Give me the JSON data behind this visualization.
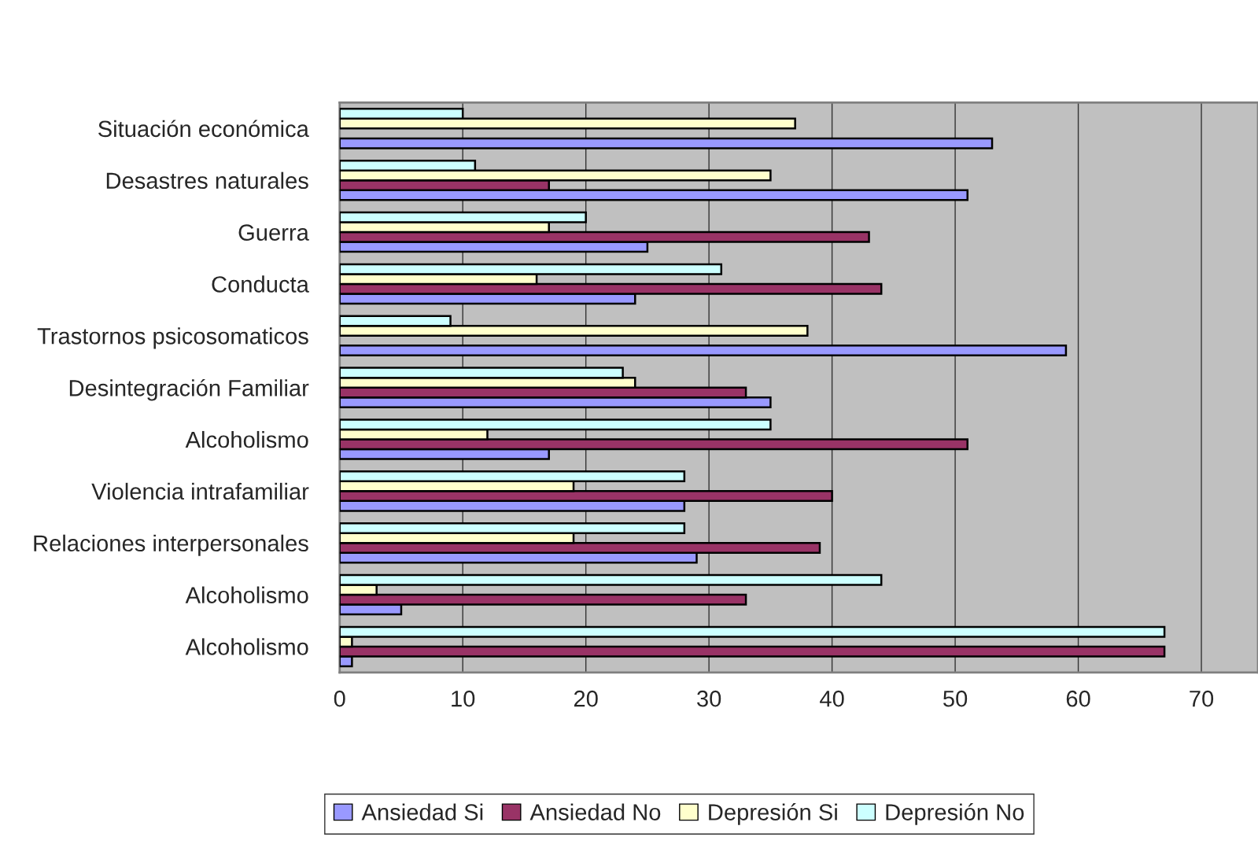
{
  "chart_data": {
    "type": "bar",
    "orientation": "horizontal",
    "categories": [
      "Situación económica",
      "Desastres naturales",
      "Guerra",
      "Conducta",
      "Trastornos psicosomaticos",
      "Desintegración Familiar",
      "Alcoholismo",
      "Violencia intrafamiliar",
      "Relaciones interpersonales",
      "Alcoholismo",
      "Alcoholismo"
    ],
    "series": [
      {
        "name": "Ansiedad Si",
        "color": "#9999ff",
        "values": [
          53,
          51,
          25,
          24,
          59,
          35,
          17,
          28,
          29,
          5,
          1
        ]
      },
      {
        "name": "Ansiedad No",
        "color": "#993366",
        "values": [
          null,
          17,
          43,
          44,
          null,
          33,
          51,
          40,
          39,
          33,
          67
        ]
      },
      {
        "name": "Depresión Si",
        "color": "#ffffcc",
        "values": [
          37,
          35,
          17,
          16,
          38,
          24,
          12,
          19,
          19,
          3,
          1
        ]
      },
      {
        "name": "Depresión No",
        "color": "#ccffff",
        "values": [
          10,
          11,
          20,
          31,
          9,
          23,
          35,
          28,
          28,
          44,
          67
        ]
      }
    ],
    "xlim": [
      0,
      74.6
    ],
    "xticks": [
      0,
      10,
      20,
      30,
      40,
      50,
      60,
      70
    ],
    "grid": "x",
    "legend": "bottom"
  }
}
